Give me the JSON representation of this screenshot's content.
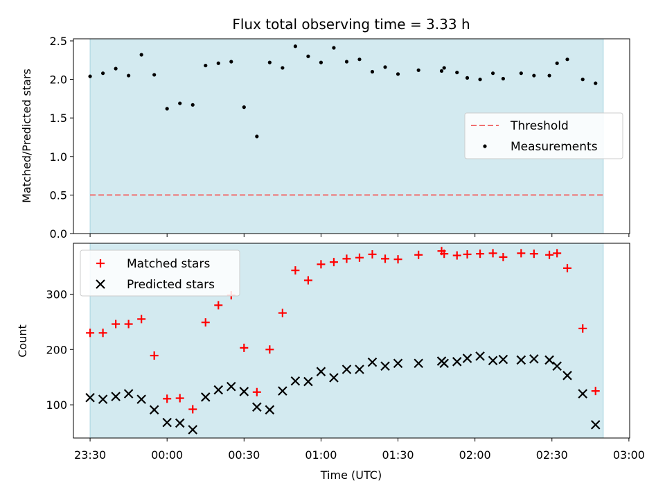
{
  "chart_data": [
    {
      "type": "scatter",
      "title": "Flux total observing time = 3.33 h",
      "xlabel": "",
      "ylabel": "Matched/Predicted stars",
      "ylim": [
        0,
        2.5
      ],
      "yticks": [
        "0.0",
        "0.5",
        "1.0",
        "1.5",
        "2.0",
        "2.5"
      ],
      "grid": false,
      "legend": {
        "placement": "center-right",
        "entries": [
          "Threshold",
          "Measurements"
        ]
      },
      "shaded_interval": [
        "23:30",
        "02:50"
      ],
      "threshold": {
        "name": "Threshold",
        "value": 0.5,
        "color": "#f07070"
      },
      "series": [
        {
          "name": "Measurements",
          "color": "#000000",
          "points": [
            [
              "23:30",
              2.04
            ],
            [
              "23:35",
              2.08
            ],
            [
              "23:40",
              2.14
            ],
            [
              "23:45",
              2.05
            ],
            [
              "23:50",
              2.32
            ],
            [
              "23:55",
              2.06
            ],
            [
              "00:00",
              1.62
            ],
            [
              "00:05",
              1.69
            ],
            [
              "00:10",
              1.67
            ],
            [
              "00:15",
              2.18
            ],
            [
              "00:20",
              2.21
            ],
            [
              "00:25",
              2.23
            ],
            [
              "00:30",
              1.64
            ],
            [
              "00:35",
              1.26
            ],
            [
              "00:40",
              2.22
            ],
            [
              "00:45",
              2.15
            ],
            [
              "00:50",
              2.43
            ],
            [
              "00:55",
              2.3
            ],
            [
              "01:00",
              2.22
            ],
            [
              "01:05",
              2.41
            ],
            [
              "01:10",
              2.23
            ],
            [
              "01:15",
              2.26
            ],
            [
              "01:20",
              2.1
            ],
            [
              "01:25",
              2.16
            ],
            [
              "01:30",
              2.07
            ],
            [
              "01:38",
              2.12
            ],
            [
              "01:47",
              2.11
            ],
            [
              "01:48",
              2.15
            ],
            [
              "01:53",
              2.09
            ],
            [
              "01:57",
              2.02
            ],
            [
              "02:02",
              2.0
            ],
            [
              "02:07",
              2.08
            ],
            [
              "02:11",
              2.01
            ],
            [
              "02:18",
              2.08
            ],
            [
              "02:23",
              2.05
            ],
            [
              "02:29",
              2.05
            ],
            [
              "02:32",
              2.21
            ],
            [
              "02:36",
              2.26
            ],
            [
              "02:42",
              2.0
            ],
            [
              "02:47",
              1.95
            ]
          ]
        }
      ]
    },
    {
      "type": "scatter",
      "title": "",
      "xlabel": "Time (UTC)",
      "ylabel": "Count",
      "ylim": [
        40,
        392
      ],
      "yticks": [
        "100",
        "200",
        "300"
      ],
      "xlim": [
        "23:30",
        "03:00"
      ],
      "xticks": [
        "23:30",
        "00:00",
        "00:30",
        "01:00",
        "01:30",
        "02:00",
        "02:30",
        "03:00"
      ],
      "grid": false,
      "legend": {
        "placement": "top-left",
        "entries": [
          "Matched stars",
          "Predicted stars"
        ]
      },
      "shaded_interval": [
        "23:30",
        "02:50"
      ],
      "series": [
        {
          "name": "Matched stars",
          "marker": "plus",
          "color": "#ff0000",
          "points": [
            [
              "23:30",
              230
            ],
            [
              "23:35",
              230
            ],
            [
              "23:40",
              246
            ],
            [
              "23:45",
              246
            ],
            [
              "23:50",
              255
            ],
            [
              "23:55",
              189
            ],
            [
              "00:00",
              111
            ],
            [
              "00:05",
              112
            ],
            [
              "00:10",
              92
            ],
            [
              "00:15",
              249
            ],
            [
              "00:20",
              280
            ],
            [
              "00:25",
              298
            ],
            [
              "00:30",
              203
            ],
            [
              "00:35",
              123
            ],
            [
              "00:40",
              200
            ],
            [
              "00:45",
              266
            ],
            [
              "00:50",
              343
            ],
            [
              "00:55",
              325
            ],
            [
              "01:00",
              354
            ],
            [
              "01:05",
              358
            ],
            [
              "01:10",
              364
            ],
            [
              "01:15",
              366
            ],
            [
              "01:20",
              372
            ],
            [
              "01:25",
              364
            ],
            [
              "01:30",
              363
            ],
            [
              "01:38",
              371
            ],
            [
              "01:47",
              378
            ],
            [
              "01:48",
              373
            ],
            [
              "01:53",
              370
            ],
            [
              "01:57",
              372
            ],
            [
              "02:02",
              373
            ],
            [
              "02:07",
              374
            ],
            [
              "02:11",
              367
            ],
            [
              "02:18",
              374
            ],
            [
              "02:23",
              373
            ],
            [
              "02:29",
              371
            ],
            [
              "02:32",
              374
            ],
            [
              "02:36",
              347
            ],
            [
              "02:42",
              238
            ],
            [
              "02:47",
              125
            ]
          ]
        },
        {
          "name": "Predicted stars",
          "marker": "x",
          "color": "#000000",
          "points": [
            [
              "23:30",
              113
            ],
            [
              "23:35",
              110
            ],
            [
              "23:40",
              115
            ],
            [
              "23:45",
              120
            ],
            [
              "23:50",
              110
            ],
            [
              "23:55",
              91
            ],
            [
              "00:00",
              68
            ],
            [
              "00:05",
              67
            ],
            [
              "00:10",
              55
            ],
            [
              "00:15",
              114
            ],
            [
              "00:20",
              127
            ],
            [
              "00:25",
              133
            ],
            [
              "00:30",
              124
            ],
            [
              "00:35",
              96
            ],
            [
              "00:40",
              91
            ],
            [
              "00:45",
              125
            ],
            [
              "00:50",
              143
            ],
            [
              "00:55",
              142
            ],
            [
              "01:00",
              160
            ],
            [
              "01:05",
              149
            ],
            [
              "01:10",
              164
            ],
            [
              "01:15",
              164
            ],
            [
              "01:20",
              177
            ],
            [
              "01:25",
              170
            ],
            [
              "01:30",
              175
            ],
            [
              "01:38",
              175
            ],
            [
              "01:47",
              179
            ],
            [
              "01:48",
              175
            ],
            [
              "01:53",
              178
            ],
            [
              "01:57",
              184
            ],
            [
              "02:02",
              188
            ],
            [
              "02:07",
              180
            ],
            [
              "02:11",
              182
            ],
            [
              "02:18",
              181
            ],
            [
              "02:23",
              183
            ],
            [
              "02:29",
              181
            ],
            [
              "02:32",
              170
            ],
            [
              "02:36",
              153
            ],
            [
              "02:42",
              120
            ],
            [
              "02:47",
              64
            ]
          ]
        }
      ]
    }
  ],
  "colors": {
    "shade": "#d3eaf0",
    "shade_edge": "#a8d4e0",
    "threshold": "#f07070",
    "matched": "#ff0000",
    "predicted": "#000000",
    "measurement": "#000000"
  }
}
